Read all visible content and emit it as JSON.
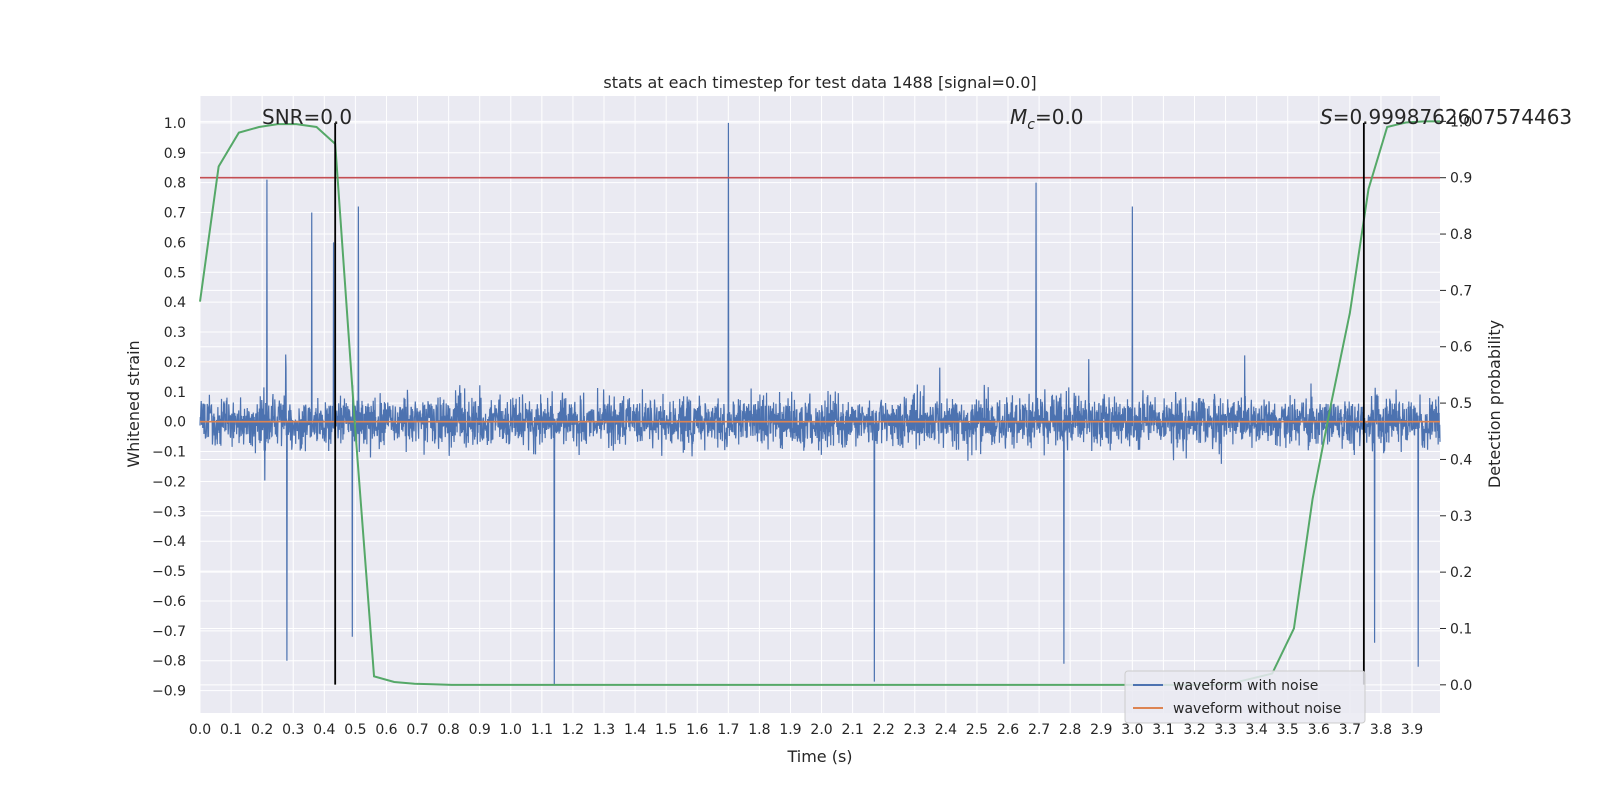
{
  "chart_data": {
    "type": "line",
    "title": "stats at each timestep for test data 1488 [signal=0.0]",
    "xlabel": "Time (s)",
    "ylabel": "Whitened strain",
    "y2label": "Detection probability",
    "xlim": [
      0.0,
      3.99
    ],
    "ylim": [
      -0.975,
      1.09
    ],
    "y2lim": [
      -0.05,
      1.045
    ],
    "xticks": [
      "0.0",
      "0.1",
      "0.2",
      "0.3",
      "0.4",
      "0.5",
      "0.6",
      "0.7",
      "0.8",
      "0.9",
      "1.0",
      "1.1",
      "1.2",
      "1.3",
      "1.4",
      "1.5",
      "1.6",
      "1.7",
      "1.8",
      "1.9",
      "2.0",
      "2.1",
      "2.2",
      "2.3",
      "2.4",
      "2.5",
      "2.6",
      "2.7",
      "2.8",
      "2.9",
      "3.0",
      "3.1",
      "3.2",
      "3.3",
      "3.4",
      "3.5",
      "3.6",
      "3.7",
      "3.8",
      "3.9"
    ],
    "yticks": [
      "-0.9",
      "-0.8",
      "-0.7",
      "-0.6",
      "-0.5",
      "-0.4",
      "-0.3",
      "-0.2",
      "-0.1",
      "0.0",
      "0.1",
      "0.2",
      "0.3",
      "0.4",
      "0.5",
      "0.6",
      "0.7",
      "0.8",
      "0.9",
      "1.0"
    ],
    "y2ticks": [
      "0.0",
      "0.1",
      "0.2",
      "0.3",
      "0.4",
      "0.5",
      "0.6",
      "0.7",
      "0.8",
      "0.9",
      "1.0"
    ],
    "grid": true,
    "legend_position": "bottom-right",
    "legend": [
      "waveform with noise",
      "waveform without noise"
    ],
    "annotations": {
      "snr": "SNR=0.0",
      "mc_symbol": "M",
      "mc_sub": "c",
      "mc_value": "=0.0",
      "s_symbol": "S",
      "s_value": "=0.9998762607574463"
    },
    "noise_seed": 1488,
    "noise_peaks": [
      {
        "t": 0.215,
        "v": 0.81
      },
      {
        "t": 0.36,
        "v": 0.7
      },
      {
        "t": 0.43,
        "v": 0.6
      },
      {
        "t": 0.51,
        "v": 0.72
      },
      {
        "t": 1.7,
        "v": 1.0
      },
      {
        "t": 2.69,
        "v": 0.8
      },
      {
        "t": 3.0,
        "v": 0.72
      },
      {
        "t": 1.14,
        "v": -0.88
      },
      {
        "t": 2.17,
        "v": -0.87
      },
      {
        "t": 0.28,
        "v": -0.8
      },
      {
        "t": 2.78,
        "v": -0.81
      },
      {
        "t": 3.92,
        "v": -0.82
      },
      {
        "t": 3.78,
        "v": -0.74
      },
      {
        "t": 0.49,
        "v": -0.72
      }
    ],
    "series": [
      {
        "name": "waveform with noise",
        "axis": "left",
        "color": "#4c72b0",
        "values": "noise"
      },
      {
        "name": "waveform without noise",
        "axis": "left",
        "color": "#dd8452",
        "x": [
          0.0,
          3.99
        ],
        "values": [
          0.0,
          0.0
        ]
      },
      {
        "name": "detection probability",
        "axis": "right",
        "color": "#55a868",
        "x": [
          0.0,
          0.06,
          0.125,
          0.19,
          0.25,
          0.31,
          0.375,
          0.435,
          0.5,
          0.56,
          0.625,
          0.69,
          0.75,
          0.81,
          0.875,
          1.0,
          1.5,
          2.0,
          2.5,
          3.0,
          3.3,
          3.45,
          3.52,
          3.58,
          3.64,
          3.7,
          3.76,
          3.82,
          3.88,
          3.94,
          3.99
        ],
        "values": [
          0.68,
          0.92,
          0.98,
          0.99,
          0.995,
          0.995,
          0.99,
          0.96,
          0.45,
          0.015,
          0.005,
          0.002,
          0.001,
          0.0,
          0.0,
          0.0,
          0.0,
          0.0,
          0.0,
          0.0,
          0.0,
          0.02,
          0.1,
          0.33,
          0.5,
          0.66,
          0.88,
          0.99,
          0.998,
          1.0,
          1.0
        ]
      }
    ],
    "threshold": {
      "axis": "right",
      "value": 0.9,
      "color": "#c44e52"
    },
    "markers": [
      {
        "t": 0.435,
        "y_from": -0.88,
        "y_to": 1.0,
        "color": "#000000"
      },
      {
        "t": 3.745,
        "y_from": -0.88,
        "y_to": 1.0,
        "color": "#000000"
      }
    ],
    "colors": {
      "background": "#eaeaf2",
      "grid": "#ffffff"
    }
  }
}
